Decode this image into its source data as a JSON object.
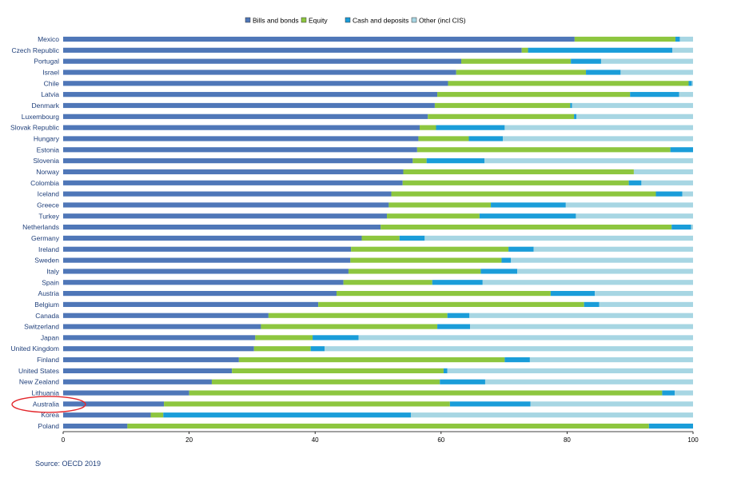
{
  "chart_data": {
    "type": "bar",
    "orientation": "horizontal",
    "stacked": true,
    "categories": [
      "Mexico",
      "Czech Republic",
      "Portugal",
      "Israel",
      "Chile",
      "Latvia",
      "Denmark",
      "Luxembourg",
      "Slovak Republic",
      "Hungary",
      "Estonia",
      "Slovenia",
      "Norway",
      "Colombia",
      "Iceland",
      "Greece",
      "Turkey",
      "Netherlands",
      "Germany",
      "Ireland",
      "Sweden",
      "Italy",
      "Spain",
      "Austria",
      "Belgium",
      "Canada",
      "Switzerland",
      "Japan",
      "United Kingdom",
      "Finland",
      "United States",
      "New Zealand",
      "Lithuania",
      "Australia",
      "Korea",
      "Poland"
    ],
    "series": [
      {
        "name": "Bills and bonds",
        "color": "#4f77b8",
        "values": [
          81.2,
          72.8,
          63.2,
          62.4,
          61.1,
          59.4,
          59.0,
          57.9,
          56.6,
          56.4,
          56.2,
          55.5,
          54.0,
          53.9,
          52.1,
          51.7,
          51.4,
          50.4,
          47.4,
          45.7,
          45.6,
          45.3,
          44.5,
          43.4,
          40.5,
          32.6,
          31.4,
          30.5,
          30.3,
          27.9,
          26.8,
          23.6,
          20.0,
          16.0,
          13.9,
          10.2
        ]
      },
      {
        "name": "Equity",
        "color": "#8dc63f",
        "values": [
          16.0,
          1.0,
          17.4,
          20.6,
          38.2,
          30.6,
          21.5,
          23.2,
          2.6,
          8.0,
          40.2,
          2.2,
          36.6,
          35.9,
          42.0,
          16.2,
          14.7,
          46.2,
          6.0,
          25.0,
          24.0,
          21.0,
          14.1,
          34.0,
          42.2,
          28.4,
          28.0,
          9.1,
          9.0,
          42.2,
          33.6,
          36.2,
          75.1,
          45.4,
          2.0,
          82.8
        ]
      },
      {
        "name": "Cash and deposits",
        "color": "#1a9dd9",
        "values": [
          0.7,
          22.9,
          4.8,
          5.5,
          0.5,
          7.8,
          0.3,
          0.4,
          10.9,
          5.4,
          3.6,
          9.2,
          0.0,
          2.0,
          4.2,
          11.9,
          15.3,
          3.1,
          4.0,
          4.0,
          1.5,
          5.8,
          8.0,
          7.0,
          2.4,
          3.5,
          5.2,
          7.3,
          2.2,
          4.0,
          0.6,
          7.2,
          2.0,
          12.8,
          39.3,
          7.0
        ]
      }
    ],
    "other_series": {
      "name": "Other (incl CIS)",
      "color": "#a7d6e3"
    },
    "xlim": [
      0,
      100
    ],
    "xticks": [
      0,
      20,
      40,
      60,
      80,
      100
    ],
    "legend": "top",
    "grid": false,
    "highlight": "Australia"
  },
  "source": "Source: OECD 2019"
}
